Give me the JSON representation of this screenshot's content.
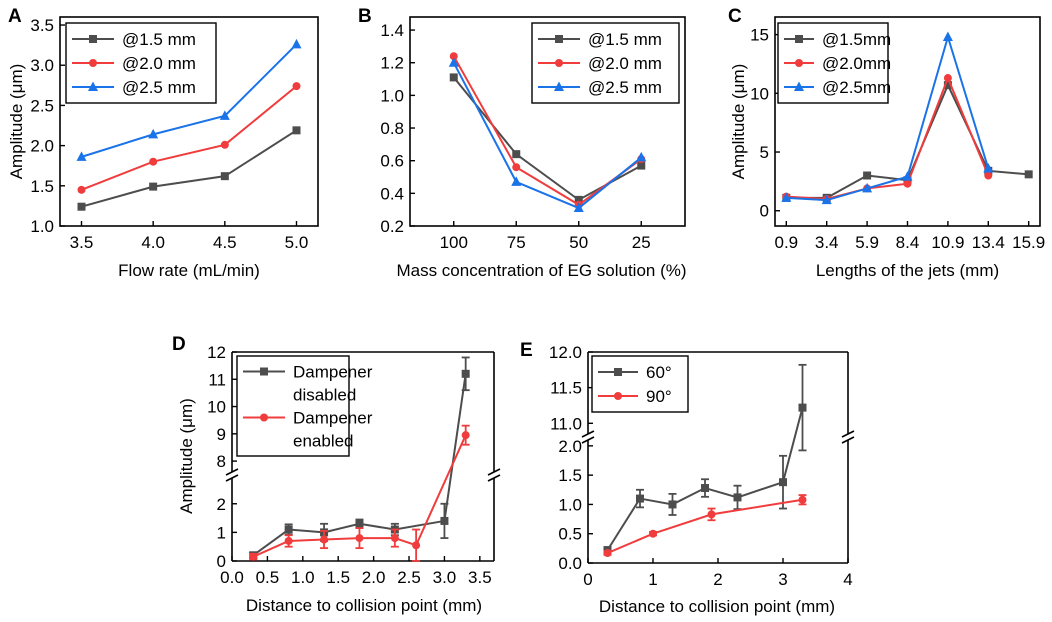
{
  "colors": {
    "gray": "#4d4d4d",
    "red": "#f03c3c",
    "blue": "#1a73e8",
    "axis": "#000000"
  },
  "chart_data": [
    {
      "panel": "A",
      "type": "line",
      "xlabel": "Flow rate (mL/min)",
      "ylabel": "Amplitude (μm)",
      "x": [
        3.5,
        4.0,
        4.5,
        5.0
      ],
      "xticks": [
        "3.5",
        "4.0",
        "4.5",
        "5.0"
      ],
      "xlim": [
        3.35,
        5.15
      ],
      "yticks": [
        "1.0",
        "1.5",
        "2.0",
        "2.5",
        "3.0",
        "3.5"
      ],
      "ylim": [
        1.0,
        3.6
      ],
      "legend_position": "top-left",
      "series": [
        {
          "name": "@1.5 mm",
          "color": "#4d4d4d",
          "marker": "square",
          "values": [
            1.24,
            1.49,
            1.62,
            2.19
          ]
        },
        {
          "name": "@2.0 mm",
          "color": "#f03c3c",
          "marker": "circle",
          "values": [
            1.45,
            1.8,
            2.01,
            2.74
          ]
        },
        {
          "name": "@2.5 mm",
          "color": "#1a73e8",
          "marker": "triangle",
          "values": [
            1.86,
            2.14,
            2.37,
            3.26
          ]
        }
      ]
    },
    {
      "panel": "B",
      "type": "line",
      "xlabel": "Mass concentration of EG solution (%)",
      "ylabel": "",
      "x": [
        100,
        75,
        50,
        25
      ],
      "xticks": [
        "100",
        "75",
        "50",
        "25"
      ],
      "yticks": [
        "0.2",
        "0.4",
        "0.6",
        "0.8",
        "1.0",
        "1.2",
        "1.4"
      ],
      "ylim": [
        0.2,
        1.48
      ],
      "legend_position": "top-right",
      "series": [
        {
          "name": "@1.5 mm",
          "color": "#4d4d4d",
          "marker": "square",
          "values": [
            1.11,
            0.64,
            0.36,
            0.57
          ]
        },
        {
          "name": "@2.0 mm",
          "color": "#f03c3c",
          "marker": "circle",
          "values": [
            1.24,
            0.56,
            0.33,
            0.61
          ]
        },
        {
          "name": "@2.5 mm",
          "color": "#1a73e8",
          "marker": "triangle",
          "values": [
            1.2,
            0.47,
            0.31,
            0.62
          ]
        }
      ]
    },
    {
      "panel": "C",
      "type": "line",
      "xlabel": "Lengths of the jets (mm)",
      "ylabel": "Amplitude (μm)",
      "x": [
        0.9,
        3.4,
        5.9,
        8.4,
        10.9,
        13.4,
        15.9
      ],
      "xticks": [
        "0.9",
        "3.4",
        "5.9",
        "8.4",
        "10.9",
        "13.4",
        "15.9"
      ],
      "xlim": [
        0.2,
        16.6
      ],
      "yticks": [
        "0",
        "5",
        "10",
        "15"
      ],
      "ylim": [
        -1.3,
        16.5
      ],
      "legend_position": "top-left",
      "series": [
        {
          "name": "@1.5mm",
          "color": "#4d4d4d",
          "marker": "square",
          "x": [
            0.9,
            3.4,
            5.9,
            8.4,
            10.9,
            13.4,
            15.9
          ],
          "values": [
            1.1,
            1.1,
            3.0,
            2.6,
            10.7,
            3.4,
            3.1
          ]
        },
        {
          "name": "@2.0mm",
          "color": "#f03c3c",
          "marker": "circle",
          "x": [
            0.9,
            3.4,
            5.9,
            8.4,
            10.9,
            13.4
          ],
          "values": [
            1.2,
            1.0,
            1.9,
            2.3,
            11.3,
            3.0
          ]
        },
        {
          "name": "@2.5mm",
          "color": "#1a73e8",
          "marker": "triangle",
          "x": [
            0.9,
            3.4,
            5.9,
            8.4,
            10.9,
            13.4
          ],
          "values": [
            1.1,
            0.9,
            1.9,
            2.9,
            14.8,
            3.6
          ]
        }
      ]
    },
    {
      "panel": "D",
      "type": "line",
      "xlabel": "Distance to collision point (mm)",
      "ylabel": "Amplitude (μm)",
      "xticks": [
        "0.0",
        "0.5",
        "1.0",
        "1.5",
        "2.0",
        "2.5",
        "3.0",
        "3.5"
      ],
      "xlim": [
        0.0,
        3.7
      ],
      "axis_break": "y",
      "lower_yticks": [
        "0",
        "1",
        "2"
      ],
      "lower_ylim": [
        0,
        2.9
      ],
      "upper_yticks": [
        "8",
        "9",
        "10",
        "11",
        "12"
      ],
      "upper_ylim": [
        7.6,
        12
      ],
      "legend_position": "top-left",
      "series": [
        {
          "name": "Dampener disabled",
          "name_lines": [
            "Dampener",
            "disabled"
          ],
          "color": "#4d4d4d",
          "marker": "square",
          "x": [
            0.3,
            0.8,
            1.3,
            1.8,
            2.3,
            3.0,
            3.3
          ],
          "values": [
            0.2,
            1.1,
            1.0,
            1.3,
            1.1,
            1.4,
            11.2
          ],
          "errors": [
            0.1,
            0.18,
            0.3,
            0.15,
            0.2,
            0.6,
            0.6
          ]
        },
        {
          "name": "Dampener enabled",
          "name_lines": [
            "Dampener",
            "enabled"
          ],
          "color": "#f03c3c",
          "marker": "circle",
          "x": [
            0.3,
            0.8,
            1.3,
            1.8,
            2.3,
            2.6,
            3.3
          ],
          "values": [
            0.15,
            0.7,
            0.75,
            0.8,
            0.8,
            0.55,
            8.95
          ],
          "errors": [
            0.1,
            0.2,
            0.3,
            0.35,
            0.3,
            0.55,
            0.35
          ]
        }
      ]
    },
    {
      "panel": "E",
      "type": "line",
      "xlabel": "Distance to collision point (mm)",
      "ylabel": "",
      "xticks": [
        "0",
        "1",
        "2",
        "3",
        "4"
      ],
      "xlim": [
        0,
        4
      ],
      "axis_break": "y",
      "lower_yticks": [
        "0.0",
        "0.5",
        "1.0",
        "1.5",
        "2.0"
      ],
      "lower_ylim": [
        0,
        2.1
      ],
      "upper_yticks": [
        "11.0",
        "11.5",
        "12.0"
      ],
      "upper_ylim": [
        10.85,
        12
      ],
      "legend_position": "top-left",
      "series": [
        {
          "name": "60°",
          "color": "#4d4d4d",
          "marker": "square",
          "x": [
            0.3,
            0.8,
            1.3,
            1.8,
            2.3,
            3.0,
            3.3
          ],
          "values": [
            0.22,
            1.1,
            1.0,
            1.28,
            1.12,
            1.38,
            11.22
          ],
          "errors": [
            0.05,
            0.15,
            0.18,
            0.15,
            0.2,
            0.45,
            0.6
          ]
        },
        {
          "name": "90°",
          "color": "#f03c3c",
          "marker": "circle",
          "x": [
            0.3,
            1.0,
            1.9,
            3.3
          ],
          "values": [
            0.17,
            0.5,
            0.83,
            1.08
          ],
          "errors": [
            0.03,
            0.03,
            0.1,
            0.08
          ]
        }
      ]
    }
  ]
}
